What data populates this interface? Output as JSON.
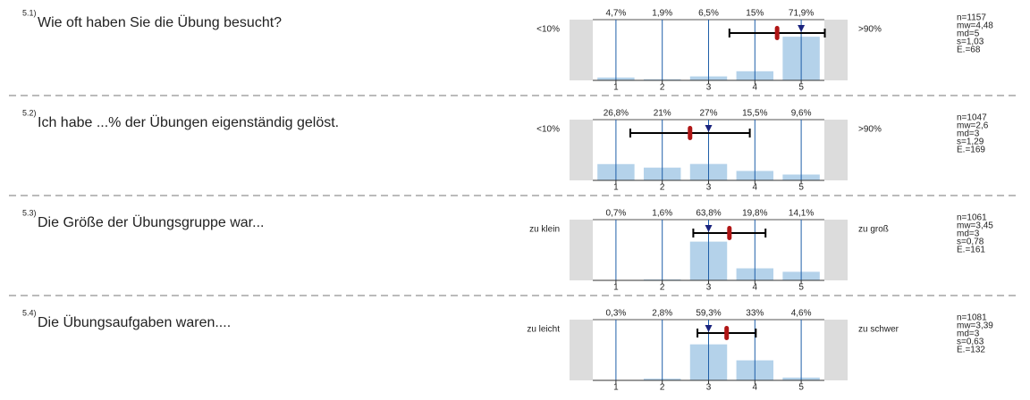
{
  "chart_data": [
    {
      "type": "bar",
      "number": "5.1)",
      "title": "Wie oft haben Sie die Übung besucht?",
      "left_label": "<10%",
      "right_label": ">90%",
      "categories": [
        "1",
        "2",
        "3",
        "4",
        "5"
      ],
      "values": [
        4.7,
        1.9,
        6.5,
        15,
        71.9
      ],
      "value_labels": [
        "4,7%",
        "1,9%",
        "6,5%",
        "15%",
        "71,9%"
      ],
      "color": "#b4d2ea",
      "ylim": [
        0,
        100
      ],
      "xlim": [
        1,
        5
      ],
      "mean": 4.48,
      "median": 5,
      "sd": 1.03,
      "stats": {
        "n": "n=1157",
        "mw": "mw=4,48",
        "md": "md=5",
        "s": "s=1,03",
        "e": "E.=68"
      }
    },
    {
      "type": "bar",
      "number": "5.2)",
      "title": "Ich habe ...% der Übungen eigenständig gelöst.",
      "left_label": "<10%",
      "right_label": ">90%",
      "categories": [
        "1",
        "2",
        "3",
        "4",
        "5"
      ],
      "values": [
        26.8,
        21,
        27,
        15.5,
        9.6
      ],
      "value_labels": [
        "26,8%",
        "21%",
        "27%",
        "15,5%",
        "9,6%"
      ],
      "color": "#b4d2ea",
      "ylim": [
        0,
        100
      ],
      "xlim": [
        1,
        5
      ],
      "mean": 2.6,
      "median": 3,
      "sd": 1.29,
      "stats": {
        "n": "n=1047",
        "mw": "mw=2,6",
        "md": "md=3",
        "s": "s=1,29",
        "e": "E.=169"
      }
    },
    {
      "type": "bar",
      "number": "5.3)",
      "title": "Die Größe der Übungsgruppe war...",
      "left_label": "zu klein",
      "right_label": "zu groß",
      "categories": [
        "1",
        "2",
        "3",
        "4",
        "5"
      ],
      "values": [
        0.7,
        1.6,
        63.8,
        19.8,
        14.1
      ],
      "value_labels": [
        "0,7%",
        "1,6%",
        "63,8%",
        "19,8%",
        "14,1%"
      ],
      "color": "#b4d2ea",
      "ylim": [
        0,
        100
      ],
      "xlim": [
        1,
        5
      ],
      "mean": 3.45,
      "median": 3,
      "sd": 0.78,
      "stats": {
        "n": "n=1061",
        "mw": "mw=3,45",
        "md": "md=3",
        "s": "s=0,78",
        "e": "E.=161"
      }
    },
    {
      "type": "bar",
      "number": "5.4)",
      "title": "Die Übungsaufgaben waren....",
      "left_label": "zu leicht",
      "right_label": "zu schwer",
      "categories": [
        "1",
        "2",
        "3",
        "4",
        "5"
      ],
      "values": [
        0.3,
        2.8,
        59.3,
        33,
        4.6
      ],
      "value_labels": [
        "0,3%",
        "2,8%",
        "59,3%",
        "33%",
        "4,6%"
      ],
      "color": "#b4d2ea",
      "ylim": [
        0,
        100
      ],
      "xlim": [
        1,
        5
      ],
      "mean": 3.39,
      "median": 3,
      "sd": 0.63,
      "stats": {
        "n": "n=1081",
        "mw": "mw=3,39",
        "md": "md=3",
        "s": "s=0,63",
        "e": "E.=132"
      }
    }
  ]
}
